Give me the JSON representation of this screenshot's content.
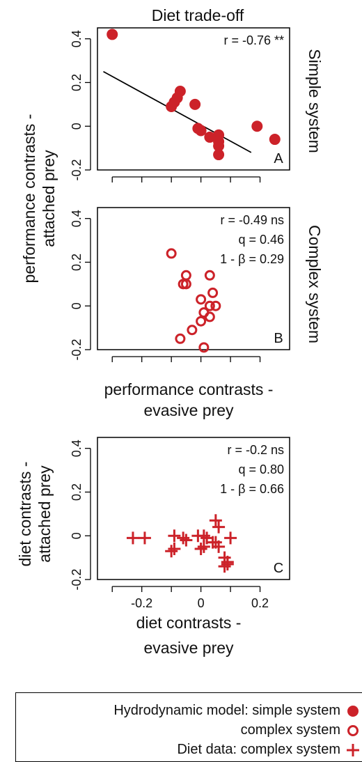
{
  "figure": {
    "title": "Diet trade-off",
    "side_label_a": "Simple system",
    "side_label_b": "Complex system",
    "ylabel_ab": "performance contrasts -\nattached prey",
    "xlabel_ab": "performance contrasts -\nevasive prey",
    "ylabel_c": "diet contrasts -\nattached prey",
    "xlabel_c": "diet contrasts -\nevasive prey",
    "colors": {
      "red": "#cc2229",
      "line": "#000000"
    }
  },
  "legend": {
    "row1": "Hydrodynamic model: simple system",
    "row2": "complex system",
    "row3": "Diet data: complex system"
  },
  "chart_data": [
    {
      "type": "scatter",
      "panel": "A",
      "marker": "filled-circle",
      "annotations": [
        "r = -0.76 **"
      ],
      "xlim": [
        -0.35,
        0.3
      ],
      "ylim": [
        -0.2,
        0.45
      ],
      "yticks": [
        -0.2,
        0,
        0.2,
        0.4
      ],
      "ytick_labels": [
        "-0.2",
        "0",
        "0.2",
        "0.4"
      ],
      "points": [
        [
          -0.3,
          0.42
        ],
        [
          -0.07,
          0.16
        ],
        [
          -0.08,
          0.13
        ],
        [
          -0.09,
          0.11
        ],
        [
          -0.1,
          0.09
        ],
        [
          -0.02,
          0.1
        ],
        [
          -0.01,
          -0.01
        ],
        [
          0.0,
          -0.02
        ],
        [
          0.03,
          -0.05
        ],
        [
          0.06,
          -0.04
        ],
        [
          0.06,
          -0.07
        ],
        [
          0.06,
          -0.09
        ],
        [
          0.06,
          -0.13
        ],
        [
          0.19,
          0.0
        ],
        [
          0.25,
          -0.06
        ]
      ],
      "fit_line": [
        [
          -0.33,
          0.25
        ],
        [
          0.17,
          -0.12
        ]
      ]
    },
    {
      "type": "scatter",
      "panel": "B",
      "marker": "open-circle",
      "annotations": [
        "r = -0.49 ns",
        "q = 0.46",
        "1 - β = 0.29"
      ],
      "xlim": [
        -0.35,
        0.3
      ],
      "ylim": [
        -0.2,
        0.45
      ],
      "yticks": [
        -0.2,
        0,
        0.2,
        0.4
      ],
      "ytick_labels": [
        "-0.2",
        "0",
        "0.2",
        "0.4"
      ],
      "points": [
        [
          -0.1,
          0.24
        ],
        [
          -0.05,
          0.14
        ],
        [
          -0.06,
          0.1
        ],
        [
          -0.05,
          0.1
        ],
        [
          0.03,
          0.14
        ],
        [
          0.04,
          0.06
        ],
        [
          0.0,
          0.03
        ],
        [
          0.03,
          0.0
        ],
        [
          0.05,
          0.0
        ],
        [
          0.01,
          -0.03
        ],
        [
          0.03,
          -0.05
        ],
        [
          0.0,
          -0.07
        ],
        [
          -0.03,
          -0.11
        ],
        [
          -0.07,
          -0.15
        ],
        [
          0.01,
          -0.19
        ]
      ]
    },
    {
      "type": "scatter",
      "panel": "C",
      "marker": "plus",
      "annotations": [
        "r = -0.2 ns",
        "q = 0.80",
        "1 - β = 0.66"
      ],
      "xlim": [
        -0.35,
        0.3
      ],
      "ylim": [
        -0.2,
        0.45
      ],
      "xticks": [
        -0.2,
        0,
        0.2
      ],
      "xtick_labels": [
        "-0.2",
        "0",
        "0.2"
      ],
      "yticks": [
        -0.2,
        0,
        0.2,
        0.4
      ],
      "ytick_labels": [
        "-0.2",
        "0",
        "0.2",
        "0.4"
      ],
      "points": [
        [
          -0.23,
          -0.01
        ],
        [
          -0.19,
          -0.01
        ],
        [
          -0.09,
          0.0
        ],
        [
          -0.06,
          -0.01
        ],
        [
          -0.05,
          -0.02
        ],
        [
          -0.01,
          0.0
        ],
        [
          0.01,
          0.0
        ],
        [
          0.02,
          -0.01
        ],
        [
          0.05,
          0.07
        ],
        [
          0.06,
          0.04
        ],
        [
          0.04,
          -0.03
        ],
        [
          0.05,
          -0.03
        ],
        [
          0.01,
          -0.05
        ],
        [
          0.0,
          -0.06
        ],
        [
          -0.09,
          -0.06
        ],
        [
          -0.1,
          -0.07
        ],
        [
          0.06,
          -0.05
        ],
        [
          0.1,
          -0.01
        ],
        [
          0.08,
          -0.1
        ],
        [
          0.09,
          -0.12
        ],
        [
          0.09,
          -0.13
        ],
        [
          0.08,
          -0.14
        ]
      ]
    }
  ]
}
